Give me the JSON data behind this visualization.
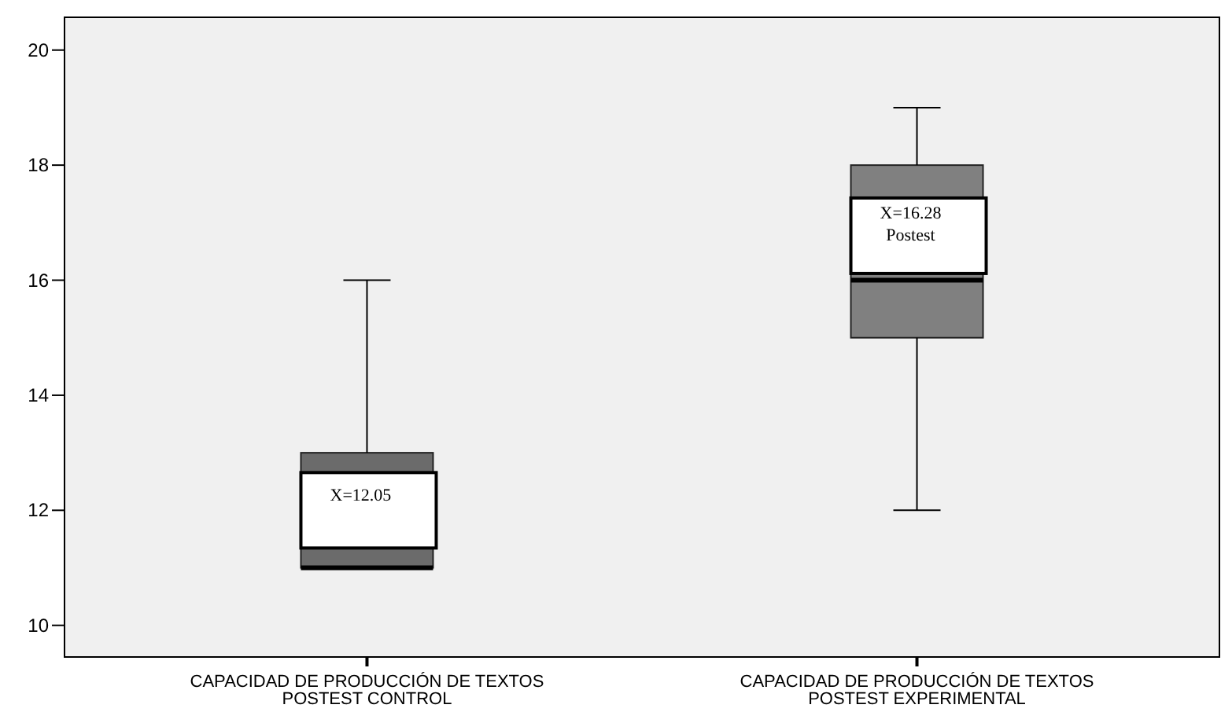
{
  "chart_data": {
    "type": "box",
    "categories": [
      "CAPACIDAD DE PRODUCCIÓN DE TEXTOS\nPOSTEST CONTROL",
      "CAPACIDAD DE PRODUCCIÓN DE TEXTOS\nPOSTEST EXPERIMENTAL"
    ],
    "boxes": [
      {
        "low": 11,
        "q1": 11,
        "median": 11,
        "q3": 13,
        "high": 16
      },
      {
        "low": 12,
        "q1": 15,
        "median": 16,
        "q3": 18,
        "high": 19
      }
    ],
    "colors": [
      "#6b6b6b",
      "#808080"
    ],
    "ylim": [
      9.45,
      20.57
    ],
    "yticks": [
      10,
      12,
      14,
      16,
      18,
      20
    ],
    "grid": false,
    "annotations": [
      "X=12.05",
      "X=16.28\nPostest"
    ]
  }
}
